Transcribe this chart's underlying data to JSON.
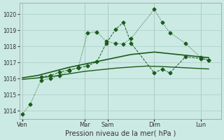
{
  "bg_color": "#cceae4",
  "grid_color": "#b0d0cc",
  "line_color": "#1a5c1a",
  "ylim": [
    1013.5,
    1020.7
  ],
  "yticks": [
    1014,
    1015,
    1016,
    1017,
    1018,
    1019,
    1020
  ],
  "xlabel": "Pression niveau de la mer( hPa )",
  "xtick_labels": [
    "Ven",
    "Mar",
    "Sam",
    "Dim",
    "Lun"
  ],
  "xtick_positions": [
    0,
    4.0,
    5.5,
    8.5,
    11.5
  ],
  "xlim": [
    -0.2,
    12.8
  ],
  "series1_x": [
    0,
    0.5,
    1.2,
    1.8,
    2.4,
    3.0,
    3.6,
    4.2,
    4.8,
    5.4,
    6.0,
    6.5,
    7.0,
    8.5,
    9.0,
    9.5,
    10.5,
    11.5,
    12.0
  ],
  "series1_y": [
    1013.8,
    1014.4,
    1015.9,
    1016.0,
    1016.2,
    1016.5,
    1016.7,
    1018.85,
    1018.9,
    1018.3,
    1018.2,
    1018.15,
    1018.5,
    1020.3,
    1019.5,
    1018.85,
    1018.2,
    1017.3,
    1017.15
  ],
  "series2_x": [
    0,
    1.0,
    2.0,
    3.0,
    4.0,
    5.0,
    6.0,
    7.0,
    8.0,
    8.5,
    9.5,
    10.5,
    11.5,
    12.0
  ],
  "series2_y": [
    1016.05,
    1016.2,
    1016.45,
    1016.7,
    1016.9,
    1017.1,
    1017.3,
    1017.5,
    1017.6,
    1017.65,
    1017.55,
    1017.45,
    1017.35,
    1017.3
  ],
  "series3_x": [
    0,
    1.0,
    2.0,
    3.0,
    4.0,
    5.0,
    6.0,
    7.0,
    8.0,
    9.0,
    10.0,
    11.0,
    12.0
  ],
  "series3_y": [
    1015.95,
    1016.05,
    1016.15,
    1016.3,
    1016.45,
    1016.55,
    1016.65,
    1016.72,
    1016.78,
    1016.75,
    1016.7,
    1016.65,
    1016.6
  ],
  "series4_x": [
    1.2,
    1.8,
    2.4,
    3.0,
    3.6,
    4.2,
    4.8,
    5.4,
    6.0,
    6.5,
    7.0,
    8.5,
    9.0,
    9.5,
    10.5,
    11.5,
    12.0
  ],
  "series4_y": [
    1016.1,
    1016.2,
    1016.4,
    1016.55,
    1016.65,
    1016.8,
    1017.05,
    1018.2,
    1019.05,
    1019.5,
    1018.2,
    1016.35,
    1016.6,
    1016.35,
    1017.35,
    1017.25,
    1017.15
  ]
}
